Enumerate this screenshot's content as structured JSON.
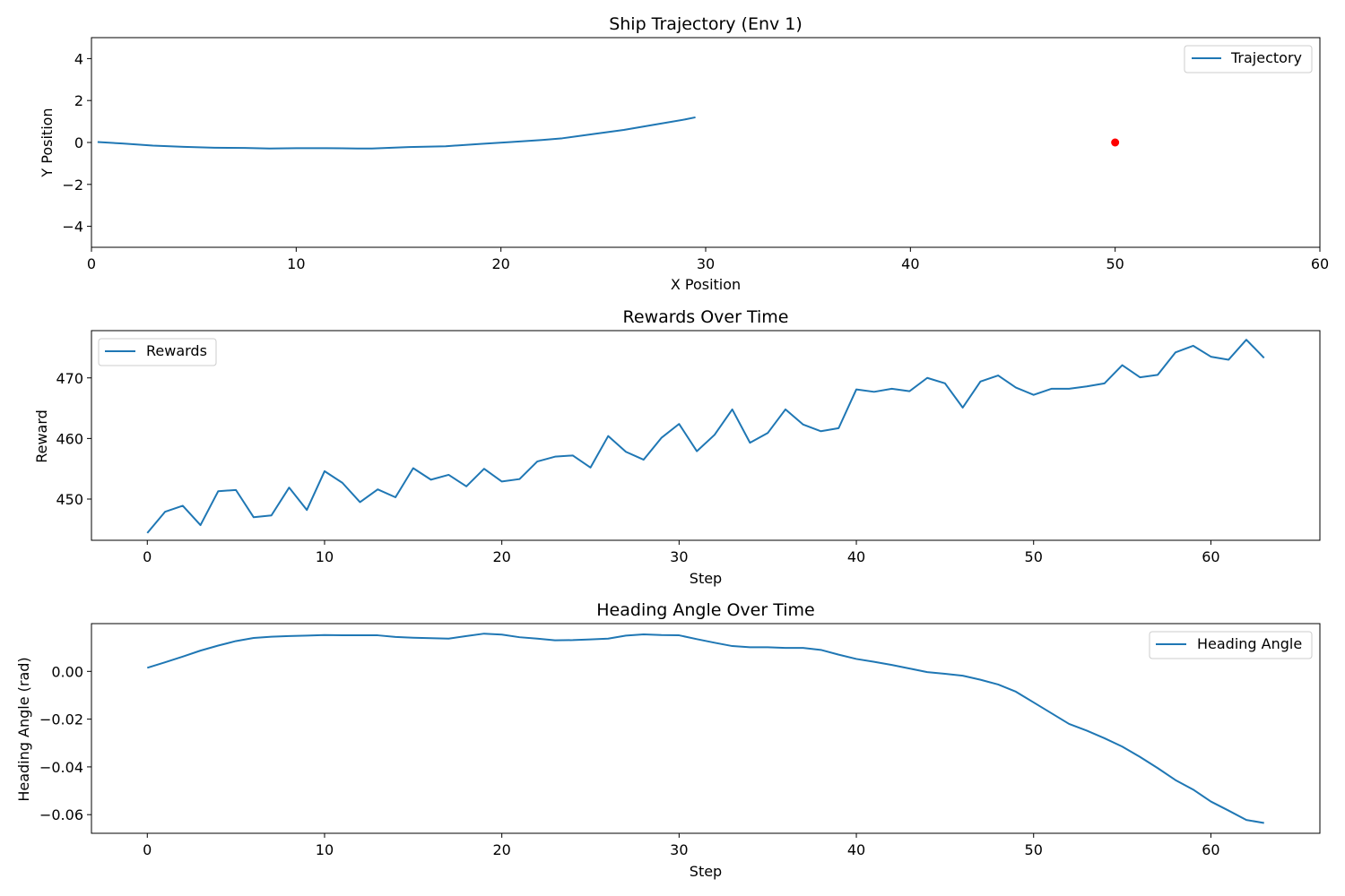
{
  "colors": {
    "line": "#1f77b4",
    "target": "#ff0000",
    "axes": "#000000",
    "legend_border": "#cccccc"
  },
  "chart_data": [
    {
      "type": "line",
      "title": "Ship Trajectory (Env 1)",
      "xlabel": "X Position",
      "ylabel": "Y Position",
      "xlim": [
        0,
        60
      ],
      "ylim": [
        -5,
        5
      ],
      "xticks": [
        0,
        10,
        20,
        30,
        40,
        50,
        60
      ],
      "yticks": [
        -4,
        -2,
        0,
        2,
        4
      ],
      "ytick_labels": [
        "−4",
        "−2",
        "0",
        "2",
        "4"
      ],
      "legend": "top-right",
      "grid": false,
      "series": [
        {
          "name": "Trajectory",
          "x": [
            0.3,
            1.5,
            3.0,
            4.5,
            6.0,
            7.5,
            8.7,
            10.0,
            11.5,
            13.0,
            13.7,
            15.5,
            17.3,
            19.0,
            20.5,
            22.0,
            23.0,
            24.5,
            26.0,
            27.5,
            29.0,
            29.5
          ],
          "y": [
            0.02,
            -0.05,
            -0.15,
            -0.21,
            -0.25,
            -0.26,
            -0.29,
            -0.27,
            -0.27,
            -0.29,
            -0.29,
            -0.22,
            -0.18,
            -0.07,
            0.02,
            0.12,
            0.2,
            0.4,
            0.6,
            0.85,
            1.1,
            1.2
          ]
        }
      ],
      "markers": [
        {
          "x": 50,
          "y": 0
        }
      ]
    },
    {
      "type": "line",
      "title": "Rewards Over Time",
      "xlabel": "Step",
      "ylabel": "Reward",
      "xlim": [
        -3.15,
        66.15
      ],
      "ylim": [
        443.2,
        477.8
      ],
      "xticks": [
        0,
        10,
        20,
        30,
        40,
        50,
        60
      ],
      "yticks": [
        450,
        460,
        470
      ],
      "legend": "top-left",
      "grid": false,
      "series": [
        {
          "name": "Rewards",
          "x": [
            0,
            1,
            2,
            3,
            4,
            5,
            6,
            7,
            8,
            9,
            10,
            11,
            12,
            13,
            14,
            15,
            16,
            17,
            18,
            19,
            20,
            21,
            22,
            23,
            24,
            25,
            26,
            27,
            28,
            29,
            30,
            31,
            32,
            33,
            34,
            35,
            36,
            37,
            38,
            39,
            40,
            41,
            42,
            43,
            44,
            45,
            46,
            47,
            48,
            49,
            50,
            51,
            52,
            53,
            54,
            55,
            56,
            57,
            58,
            59,
            60,
            61,
            62,
            63
          ],
          "y": [
            444.4,
            447.9,
            448.9,
            445.7,
            451.3,
            451.5,
            447.0,
            447.3,
            451.9,
            448.2,
            454.6,
            452.7,
            449.5,
            451.6,
            450.3,
            455.1,
            453.2,
            454.0,
            452.1,
            455.0,
            452.9,
            453.3,
            456.2,
            457.0,
            457.2,
            455.2,
            460.4,
            457.8,
            456.5,
            460.1,
            462.4,
            457.9,
            460.6,
            464.8,
            459.3,
            460.9,
            464.8,
            462.3,
            461.2,
            461.7,
            468.1,
            467.7,
            468.2,
            467.8,
            470.0,
            469.1,
            465.1,
            469.4,
            470.4,
            468.4,
            467.2,
            468.2,
            468.2,
            468.6,
            469.1,
            472.1,
            470.1,
            470.5,
            474.2,
            475.3,
            473.5,
            473.0,
            476.3,
            473.3
          ]
        }
      ]
    },
    {
      "type": "line",
      "title": "Heading Angle Over Time",
      "xlabel": "Step",
      "ylabel": "Heading Angle (rad)",
      "xlim": [
        -3.15,
        66.15
      ],
      "ylim": [
        -0.0678,
        0.02
      ],
      "xticks": [
        0,
        10,
        20,
        30,
        40,
        50,
        60
      ],
      "yticks": [
        -0.06,
        -0.04,
        -0.02,
        0.0
      ],
      "ytick_labels": [
        "−0.06",
        "−0.04",
        "−0.02",
        "0.00"
      ],
      "legend": "top-right",
      "grid": false,
      "series": [
        {
          "name": "Heading Angle",
          "x": [
            0,
            1,
            2,
            3,
            4,
            5,
            6,
            7,
            8,
            9,
            10,
            11,
            12,
            13,
            14,
            15,
            16,
            17,
            18,
            19,
            20,
            21,
            22,
            23,
            24,
            25,
            26,
            27,
            28,
            29,
            30,
            31,
            32,
            33,
            34,
            35,
            36,
            37,
            38,
            39,
            40,
            41,
            42,
            43,
            44,
            45,
            46,
            47,
            48,
            49,
            50,
            51,
            52,
            53,
            54,
            55,
            56,
            57,
            58,
            59,
            60,
            61,
            62,
            63
          ],
          "y": [
            0.0015,
            0.0038,
            0.0062,
            0.0087,
            0.0108,
            0.0127,
            0.014,
            0.0145,
            0.0148,
            0.015,
            0.0152,
            0.0151,
            0.0151,
            0.0151,
            0.0144,
            0.0141,
            0.0139,
            0.0137,
            0.0148,
            0.0158,
            0.0154,
            0.0143,
            0.0137,
            0.013,
            0.0131,
            0.0134,
            0.0137,
            0.015,
            0.0155,
            0.0152,
            0.0151,
            0.0135,
            0.012,
            0.0106,
            0.0101,
            0.0101,
            0.0098,
            0.0098,
            0.009,
            0.007,
            0.0052,
            0.004,
            0.0027,
            0.0012,
            -0.0003,
            -0.001,
            -0.0018,
            -0.0035,
            -0.0055,
            -0.0085,
            -0.013,
            -0.0175,
            -0.022,
            -0.0248,
            -0.028,
            -0.0315,
            -0.0358,
            -0.0405,
            -0.0455,
            -0.0495,
            -0.0545,
            -0.0583,
            -0.0622,
            -0.0635
          ]
        }
      ]
    }
  ]
}
